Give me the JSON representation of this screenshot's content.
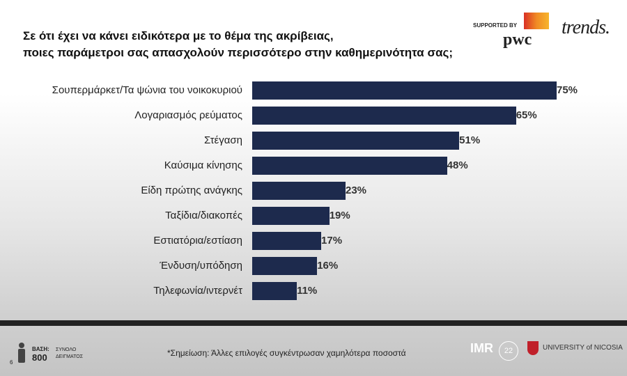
{
  "header": {
    "title_line1": "Σε ότι έχει να κάνει ειδικότερα με το θέμα της ακρίβειας,",
    "title_line2": "ποιες παράμετροι σας απασχολούν περισσότερο στην καθημερινότητα σας;",
    "supported_by": "SUPPORTED BY",
    "pwc": "pwc",
    "trends": "trends."
  },
  "chart_data": {
    "type": "bar",
    "orientation": "horizontal",
    "categories": [
      "Σουπερμάρκετ/Τα ψώνια του νοικοκυριού",
      "Λογαριασμός ρεύματος",
      "Στέγαση",
      "Καύσιμα κίνησης",
      "Είδη πρώτης ανάγκης",
      "Ταξίδια/διακοπές",
      "Εστιατόρια/εστίαση",
      "Ένδυση/υπόδηση",
      "Τηλεφωνία/ιντερνέτ"
    ],
    "values": [
      75,
      65,
      51,
      48,
      23,
      19,
      17,
      16,
      11
    ],
    "labels": [
      "75%",
      "65%",
      "51%",
      "48%",
      "23%",
      "19%",
      "17%",
      "16%",
      "11%"
    ],
    "bar_color": "#1d2a4d",
    "xlim": [
      0,
      100
    ]
  },
  "footer": {
    "base_label": "ΒΑΣΗ:",
    "base_value": "800",
    "sample_line1": "ΣΥΝΟΛΟ",
    "sample_line2": "ΔΕΙΓΜΑΤΟΣ",
    "page": "6",
    "note": "*Σημείωση: Άλλες επιλογές συγκέντρωσαν χαμηλότερα ποσοστά",
    "imr": "IMR",
    "imr_years": "22",
    "university": "UNIVERSITY of NICOSIA"
  }
}
